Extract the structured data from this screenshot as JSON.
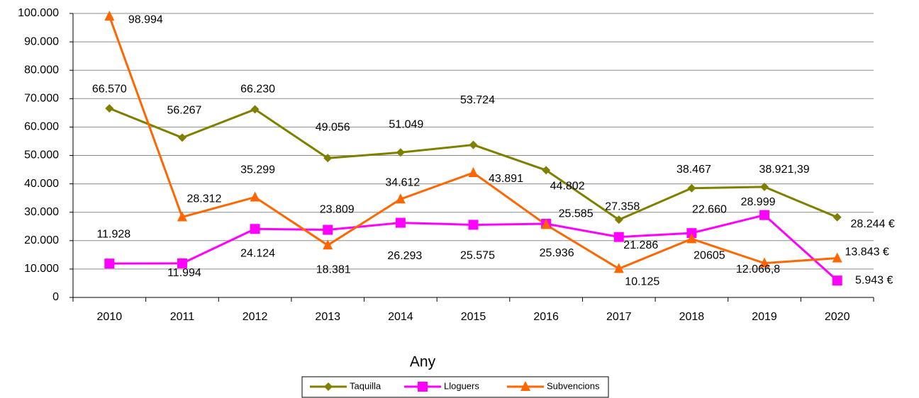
{
  "chart_data": {
    "type": "line",
    "x_label": "Any",
    "categories": [
      "2010",
      "2011",
      "2012",
      "2013",
      "2014",
      "2015",
      "2016",
      "2017",
      "2018",
      "2019",
      "2020"
    ],
    "ylim": [
      0,
      100000
    ],
    "yticks": [
      0,
      {
        "value": 10000,
        "label": "10.000"
      },
      {
        "value": 20000,
        "label": "20.000"
      },
      {
        "value": 30000,
        "label": "30.000"
      },
      {
        "value": 40000,
        "label": "40.000"
      },
      {
        "value": 50000,
        "label": "50.000"
      },
      {
        "value": 60000,
        "label": "60.000"
      },
      {
        "value": 70000,
        "label": "70.000"
      },
      {
        "value": 80000,
        "label": "80.000"
      },
      {
        "value": 90000,
        "label": "90.000"
      },
      {
        "value": 100000,
        "label": "100.000"
      }
    ],
    "grid": true,
    "series": [
      {
        "name": "Taquilla",
        "color": "#808000",
        "marker": "diamond",
        "values": [
          66570,
          56267,
          66230,
          49056,
          51049,
          53724,
          44802,
          27358,
          38467,
          38921.39,
          28244
        ],
        "value_labels": [
          "66.570",
          "56.267",
          "66.230",
          "49.056",
          "51.049",
          "53.724",
          "44.802",
          "27.358",
          "38.467",
          "38.921,39",
          "28.244 €"
        ]
      },
      {
        "name": "Lloguers",
        "color": "#ff00ff",
        "marker": "square",
        "values": [
          11928,
          11994,
          24124,
          23809,
          26293,
          25575,
          25936,
          21286,
          22660,
          28999,
          5943
        ],
        "value_labels": [
          "11.928",
          "11.994",
          "24.124",
          "23.809",
          "26.293",
          "25.575",
          "25.936",
          "21.286",
          "22.660",
          "28.999",
          "5.943 €"
        ]
      },
      {
        "name": "Subvencions",
        "color": "#ff6600",
        "marker": "triangle",
        "values": [
          98994,
          28312,
          35299,
          18381,
          34612,
          43891,
          25585,
          10125,
          20605,
          12066.8,
          13843
        ],
        "value_labels": [
          "98.994",
          "28.312",
          "35.299",
          "18.381",
          "34.612",
          "43.891",
          "25.585",
          "10.125",
          "20605",
          "12.066,8",
          "13.843 €"
        ]
      }
    ]
  }
}
